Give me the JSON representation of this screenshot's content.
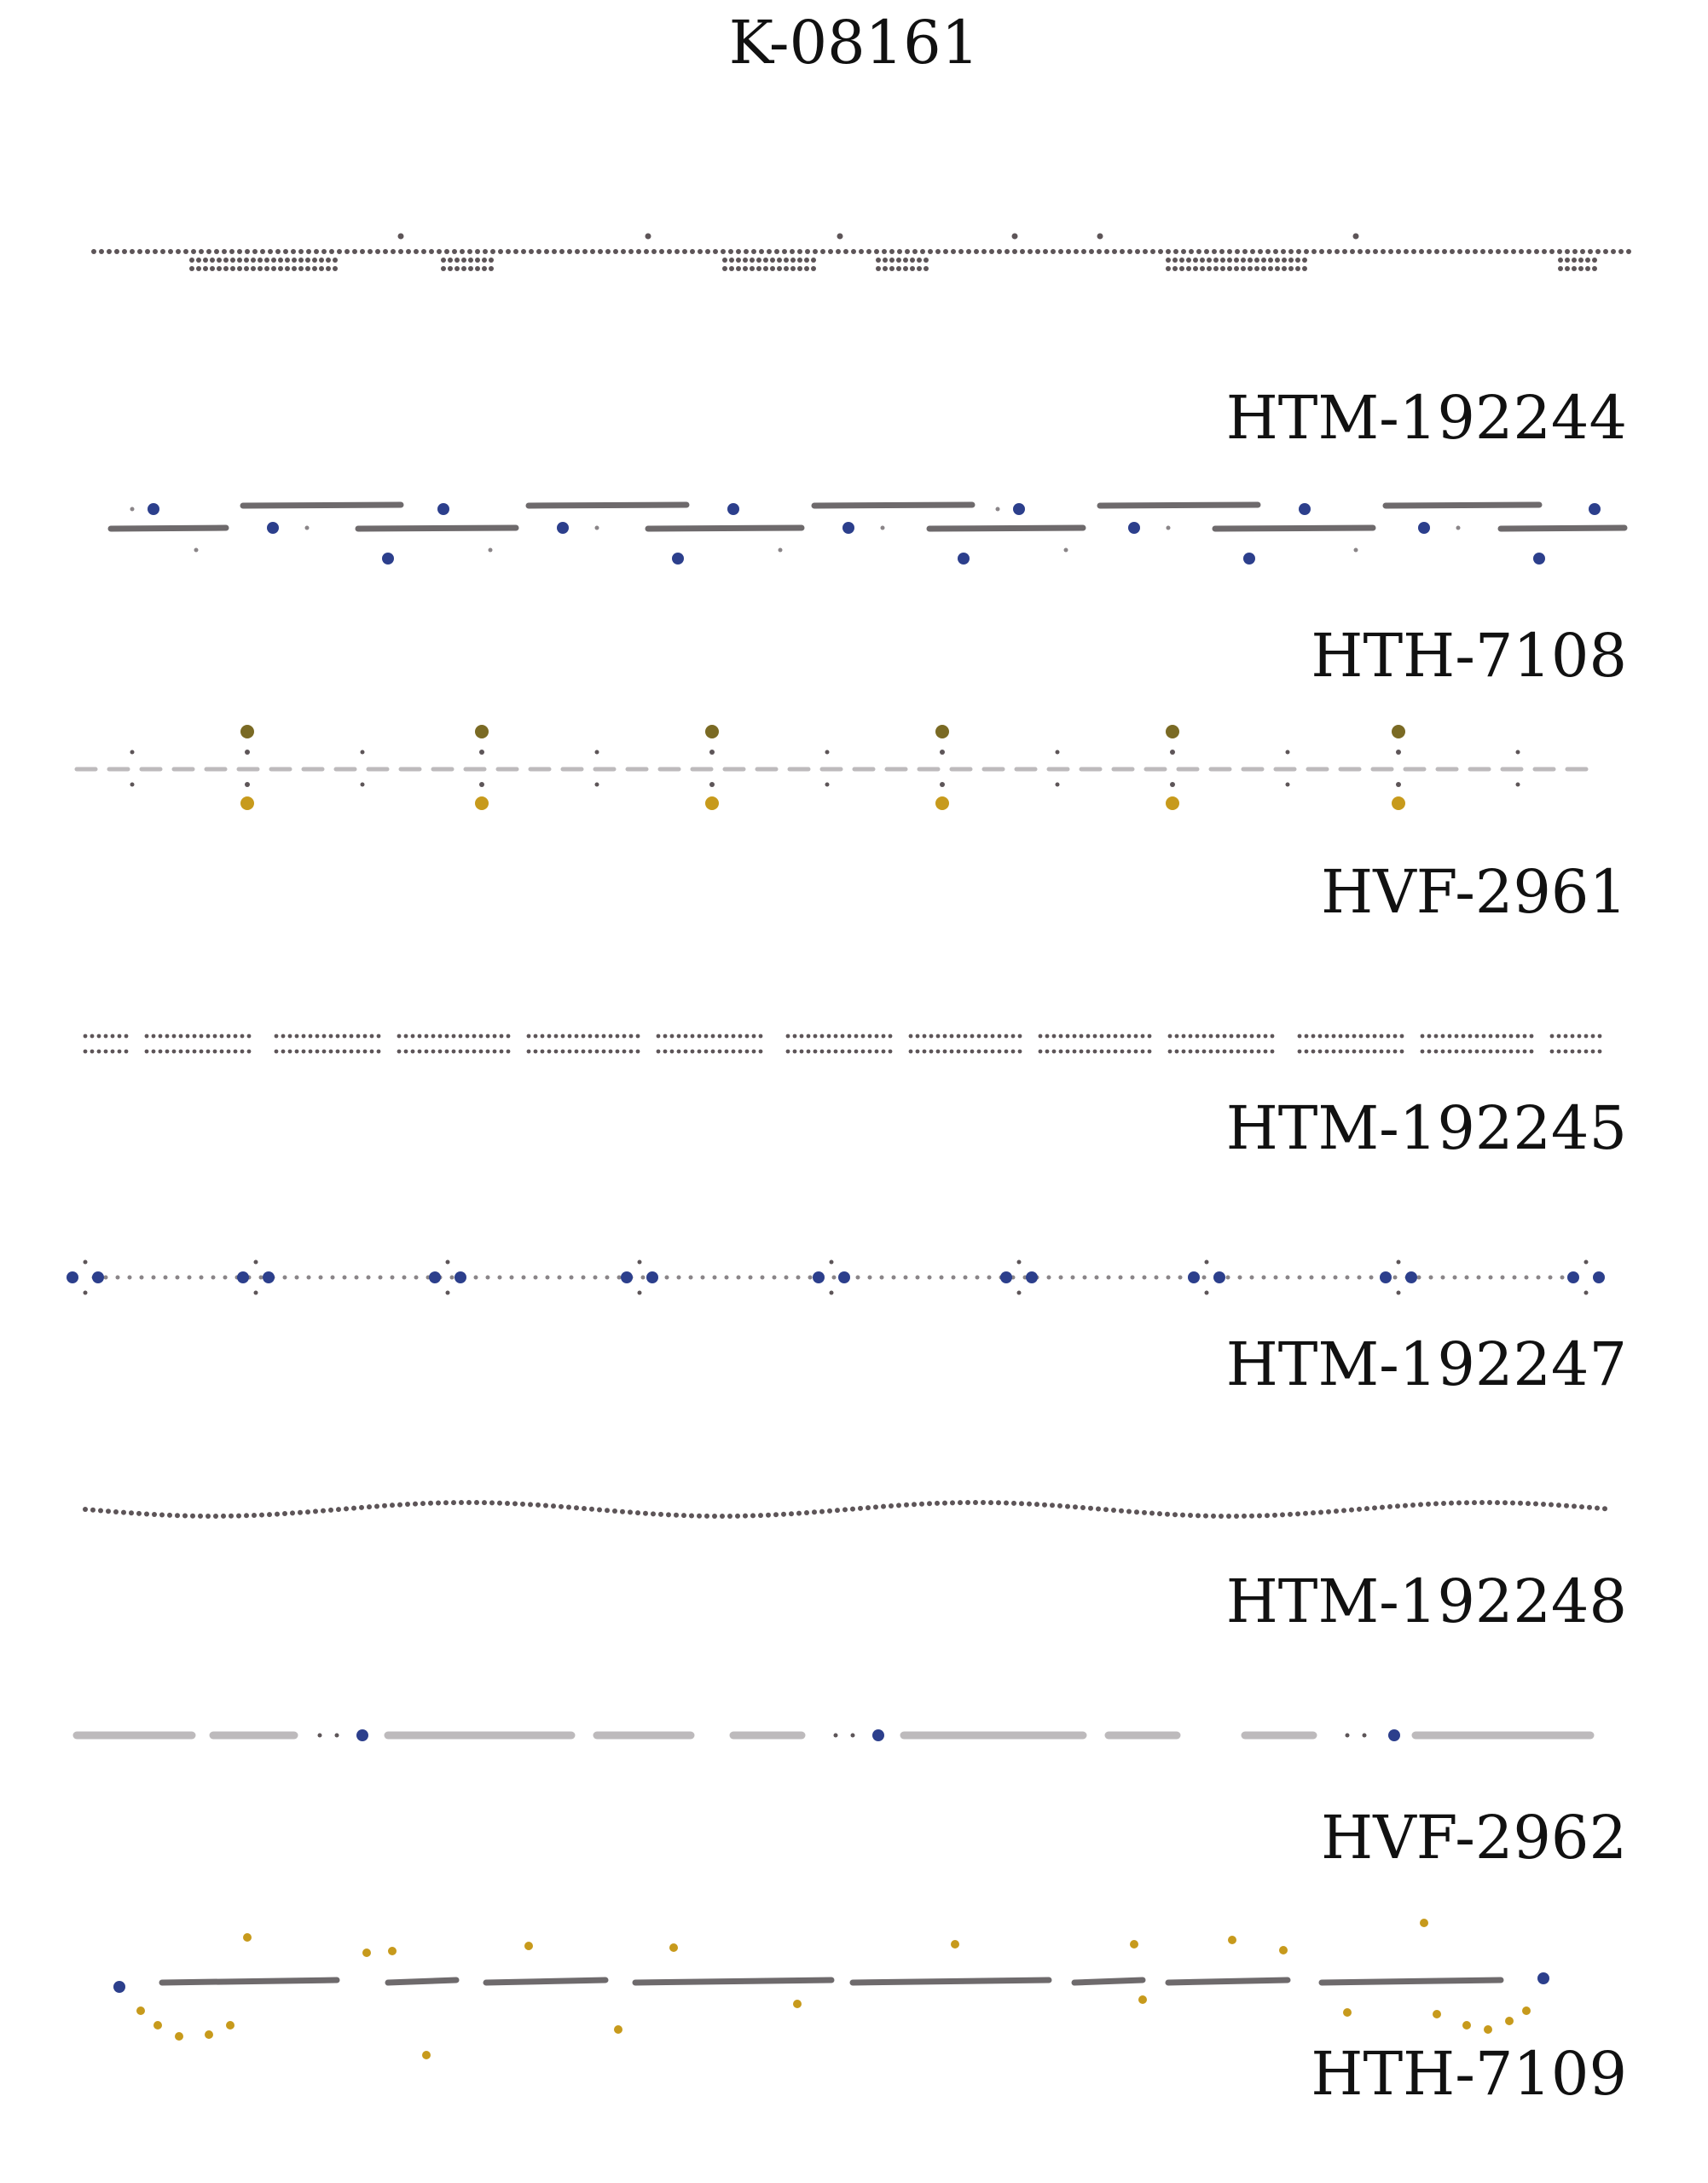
{
  "catalog": {
    "title": "K-08161",
    "items": [
      {
        "code": "HTM-192244"
      },
      {
        "code": "HTH-7108"
      },
      {
        "code": "HVF-2961"
      },
      {
        "code": "HTM-192245"
      },
      {
        "code": "HTM-192247"
      },
      {
        "code": "HTM-192248"
      },
      {
        "code": "HVF-2962"
      },
      {
        "code": "HTH-7109"
      }
    ]
  },
  "colors": {
    "stone_dark": "#5d5558",
    "stone_grey": "#8a8588",
    "bar_dark": "#6e6a6c",
    "bar_light": "#bdbabc",
    "sapphire": "#2c3f8c",
    "gold": "#c79a1c",
    "olive": "#7a6a24",
    "tiny": "#9c9698"
  }
}
